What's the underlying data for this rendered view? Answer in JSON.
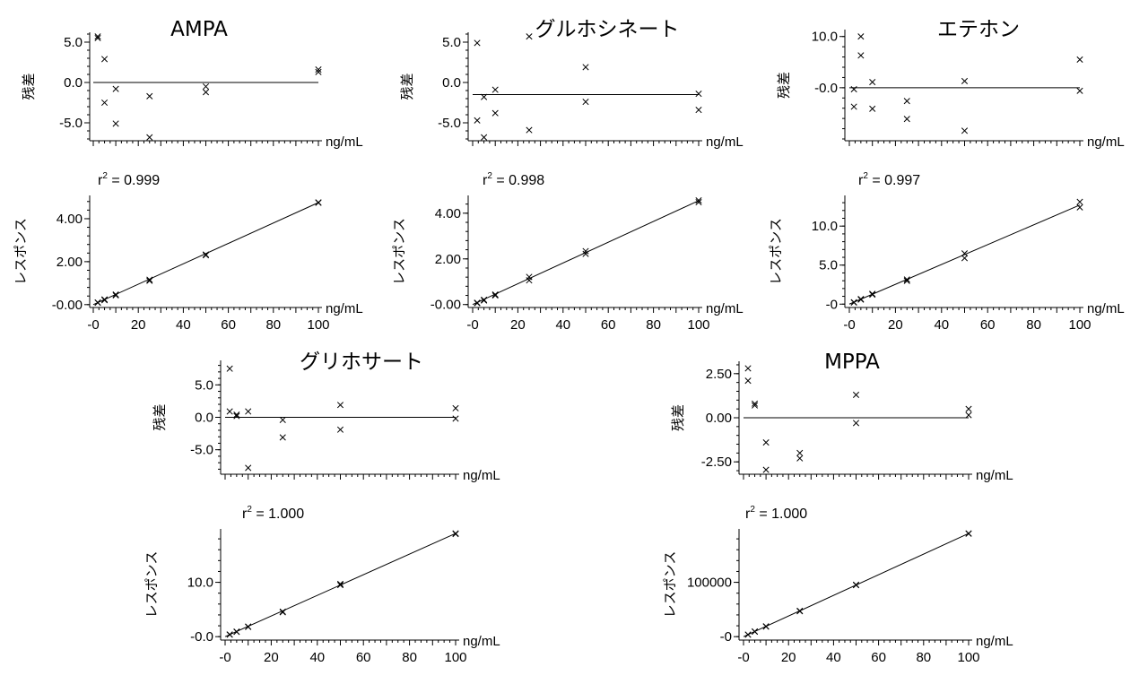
{
  "chart_data": [
    {
      "title": "AMPA",
      "units": "ng/mL",
      "residual": {
        "type": "scatter",
        "ylabel": "残差",
        "ylim": [
          -7,
          6
        ],
        "yticks": [
          "5.0",
          "0.0",
          "-5.0"
        ],
        "ytick_values": [
          5,
          0,
          -5
        ],
        "points": [
          [
            2,
            5.7
          ],
          [
            2,
            5.5
          ],
          [
            5,
            2.9
          ],
          [
            5,
            -2.5
          ],
          [
            10,
            -0.8
          ],
          [
            10,
            -5.1
          ],
          [
            25,
            -1.7
          ],
          [
            25,
            -6.8
          ],
          [
            50,
            -0.5
          ],
          [
            50,
            -1.2
          ],
          [
            100,
            1.3
          ],
          [
            100,
            1.6
          ]
        ]
      },
      "calibration": {
        "type": "scatter",
        "ylabel": "レスポンス",
        "r2": "0.999",
        "ylim": [
          -0.05,
          5.0
        ],
        "yticks": [
          "4.00",
          "2.00",
          "-0.00"
        ],
        "ytick_values": [
          4,
          2,
          0
        ],
        "xticks": [
          "-0",
          "20",
          "40",
          "60",
          "80",
          "100"
        ],
        "xtick_values": [
          0,
          20,
          40,
          60,
          80,
          100
        ],
        "points": [
          [
            2,
            0.1
          ],
          [
            2,
            0.09
          ],
          [
            5,
            0.24
          ],
          [
            5,
            0.21
          ],
          [
            10,
            0.47
          ],
          [
            10,
            0.43
          ],
          [
            25,
            1.16
          ],
          [
            25,
            1.11
          ],
          [
            50,
            2.33
          ],
          [
            50,
            2.3
          ],
          [
            100,
            4.76
          ],
          [
            100,
            4.74
          ]
        ],
        "fit": [
          [
            0,
            0.0
          ],
          [
            100,
            4.75
          ]
        ]
      }
    },
    {
      "title": "グルホシネート",
      "units": "ng/mL",
      "residual": {
        "type": "scatter",
        "ylabel": "残差",
        "ylim": [
          -7,
          6
        ],
        "yticks": [
          "5.0",
          "0.0",
          "-5.0"
        ],
        "ytick_values": [
          5,
          0,
          -5
        ],
        "zero_line": -1.5,
        "points": [
          [
            2,
            4.9
          ],
          [
            2,
            -4.7
          ],
          [
            5,
            -1.8
          ],
          [
            5,
            -6.8
          ],
          [
            10,
            -0.9
          ],
          [
            10,
            -3.8
          ],
          [
            25,
            5.7
          ],
          [
            25,
            -5.9
          ],
          [
            50,
            1.9
          ],
          [
            50,
            -2.4
          ],
          [
            100,
            -1.4
          ],
          [
            100,
            -3.4
          ]
        ]
      },
      "calibration": {
        "type": "scatter",
        "ylabel": "レスポンス",
        "r2": "0.998",
        "ylim": [
          -0.05,
          4.7
        ],
        "yticks": [
          "4.00",
          "2.00",
          "-0.00"
        ],
        "ytick_values": [
          4,
          2,
          0
        ],
        "xticks": [
          "-0",
          "20",
          "40",
          "60",
          "80",
          "100"
        ],
        "xtick_values": [
          0,
          20,
          40,
          60,
          80,
          100
        ],
        "points": [
          [
            2,
            0.08
          ],
          [
            2,
            0.06
          ],
          [
            5,
            0.21
          ],
          [
            5,
            0.18
          ],
          [
            10,
            0.44
          ],
          [
            10,
            0.4
          ],
          [
            25,
            1.21
          ],
          [
            25,
            1.06
          ],
          [
            50,
            2.34
          ],
          [
            50,
            2.22
          ],
          [
            100,
            4.56
          ],
          [
            100,
            4.48
          ]
        ],
        "fit": [
          [
            0,
            0.0
          ],
          [
            100,
            4.55
          ]
        ]
      }
    },
    {
      "title": "エテホン",
      "units": "ng/mL",
      "residual": {
        "type": "scatter",
        "ylabel": "残差",
        "ylim": [
          -10,
          11
        ],
        "yticks": [
          "10.0",
          "-0.0"
        ],
        "ytick_values": [
          10,
          0
        ],
        "points": [
          [
            2,
            -0.3
          ],
          [
            2,
            -3.7
          ],
          [
            5,
            10.0
          ],
          [
            5,
            6.3
          ],
          [
            10,
            1.1
          ],
          [
            10,
            -4.1
          ],
          [
            25,
            -2.6
          ],
          [
            25,
            -6.1
          ],
          [
            50,
            1.3
          ],
          [
            50,
            -8.4
          ],
          [
            100,
            5.5
          ],
          [
            100,
            -0.6
          ]
        ]
      },
      "calibration": {
        "type": "scatter",
        "ylabel": "レスポンス",
        "r2": "0.997",
        "ylim": [
          -0.2,
          13.7
        ],
        "yticks": [
          "10.0",
          "5.0",
          "-0"
        ],
        "ytick_values": [
          10,
          5,
          0
        ],
        "xticks": [
          "-0",
          "20",
          "40",
          "60",
          "80",
          "100"
        ],
        "xtick_values": [
          0,
          20,
          40,
          60,
          80,
          100
        ],
        "points": [
          [
            2,
            0.24
          ],
          [
            2,
            0.21
          ],
          [
            5,
            0.65
          ],
          [
            5,
            0.58
          ],
          [
            10,
            1.32
          ],
          [
            10,
            1.22
          ],
          [
            25,
            3.15
          ],
          [
            25,
            2.98
          ],
          [
            50,
            6.5
          ],
          [
            50,
            5.9
          ],
          [
            100,
            13.1
          ],
          [
            100,
            12.4
          ]
        ],
        "fit": [
          [
            0,
            0.0
          ],
          [
            100,
            12.7
          ]
        ]
      }
    },
    {
      "title": "グリホサート",
      "units": "ng/mL",
      "residual": {
        "type": "scatter",
        "ylabel": "残差",
        "ylim": [
          -8.5,
          8.5
        ],
        "yticks": [
          "5.0",
          "0.0",
          "-5.0"
        ],
        "ytick_values": [
          5,
          0,
          -5
        ],
        "points": [
          [
            2,
            7.5
          ],
          [
            2,
            0.9
          ],
          [
            5,
            0.4
          ],
          [
            5,
            0.2
          ],
          [
            10,
            0.9
          ],
          [
            10,
            -7.8
          ],
          [
            25,
            -0.4
          ],
          [
            25,
            -3.1
          ],
          [
            50,
            1.9
          ],
          [
            50,
            -1.9
          ],
          [
            100,
            1.4
          ],
          [
            100,
            -0.2
          ]
        ]
      },
      "calibration": {
        "type": "scatter",
        "ylabel": "レスポンス",
        "r2": "1.000",
        "ylim": [
          -0.3,
          19.5
        ],
        "yticks": [
          "10.0",
          "-0.0"
        ],
        "ytick_values": [
          10,
          0
        ],
        "xticks": [
          "-0",
          "20",
          "40",
          "60",
          "80",
          "100"
        ],
        "xtick_values": [
          0,
          20,
          40,
          60,
          80,
          100
        ],
        "points": [
          [
            2,
            0.4
          ],
          [
            2,
            0.36
          ],
          [
            5,
            0.92
          ],
          [
            5,
            0.88
          ],
          [
            10,
            1.85
          ],
          [
            10,
            1.79
          ],
          [
            25,
            4.6
          ],
          [
            25,
            4.5
          ],
          [
            50,
            9.7
          ],
          [
            50,
            9.5
          ],
          [
            100,
            19.0
          ],
          [
            100,
            18.9
          ]
        ],
        "fit": [
          [
            0,
            0.0
          ],
          [
            100,
            19.0
          ]
        ]
      }
    },
    {
      "title": "MPPA",
      "units": "ng/mL",
      "residual": {
        "type": "scatter",
        "ylabel": "残差",
        "ylim": [
          -3.1,
          3.1
        ],
        "yticks": [
          "2.50",
          "0.00",
          "-2.50"
        ],
        "ytick_values": [
          2.5,
          0,
          -2.5
        ],
        "points": [
          [
            2,
            2.8
          ],
          [
            2,
            2.1
          ],
          [
            5,
            0.8
          ],
          [
            5,
            0.7
          ],
          [
            10,
            -1.4
          ],
          [
            10,
            -2.95
          ],
          [
            25,
            -2.0
          ],
          [
            25,
            -2.3
          ],
          [
            50,
            1.3
          ],
          [
            50,
            -0.3
          ],
          [
            100,
            0.5
          ],
          [
            100,
            0.15
          ]
        ]
      },
      "calibration": {
        "type": "scatter",
        "ylabel": "レスポンス",
        "r2": "1.000",
        "ylim": [
          -3000,
          195000
        ],
        "yticks": [
          "100000",
          "-0"
        ],
        "ytick_values": [
          100000,
          0
        ],
        "xticks": [
          "-0",
          "20",
          "40",
          "60",
          "80",
          "100"
        ],
        "xtick_values": [
          0,
          20,
          40,
          60,
          80,
          100
        ],
        "points": [
          [
            2,
            3800
          ],
          [
            2,
            3600
          ],
          [
            5,
            9500
          ],
          [
            5,
            9200
          ],
          [
            10,
            19000
          ],
          [
            10,
            18500
          ],
          [
            25,
            47500
          ],
          [
            25,
            46800
          ],
          [
            50,
            95500
          ],
          [
            50,
            94800
          ],
          [
            100,
            190000
          ],
          [
            100,
            189500
          ]
        ],
        "fit": [
          [
            0,
            0
          ],
          [
            100,
            190000
          ]
        ]
      }
    }
  ]
}
